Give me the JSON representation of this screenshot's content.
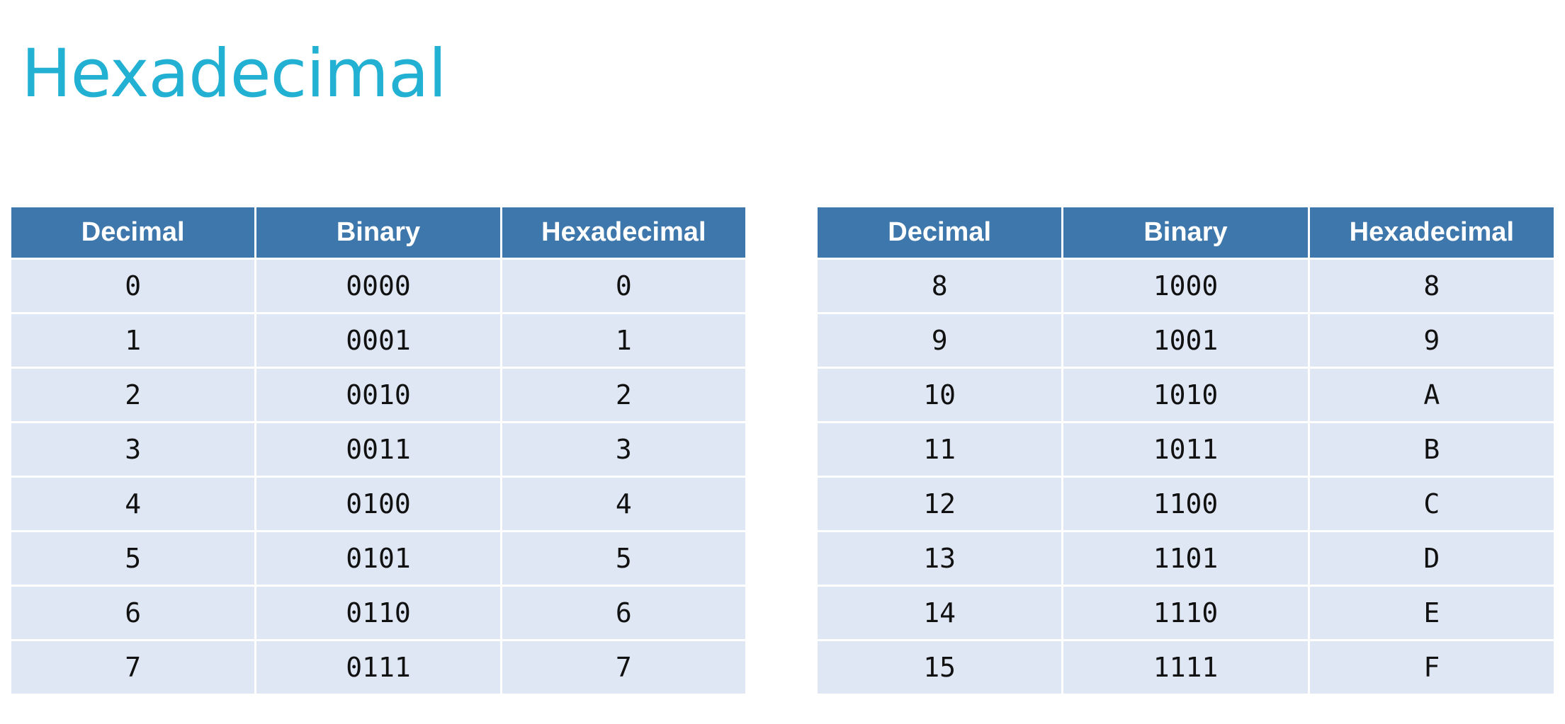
{
  "title": "Hexadecimal",
  "tables": [
    {
      "headers": [
        "Decimal",
        "Binary",
        "Hexadecimal"
      ],
      "rows": [
        [
          "0",
          "0000",
          "0"
        ],
        [
          "1",
          "0001",
          "1"
        ],
        [
          "2",
          "0010",
          "2"
        ],
        [
          "3",
          "0011",
          "3"
        ],
        [
          "4",
          "0100",
          "4"
        ],
        [
          "5",
          "0101",
          "5"
        ],
        [
          "6",
          "0110",
          "6"
        ],
        [
          "7",
          "0111",
          "7"
        ]
      ]
    },
    {
      "headers": [
        "Decimal",
        "Binary",
        "Hexadecimal"
      ],
      "rows": [
        [
          "8",
          "1000",
          "8"
        ],
        [
          "9",
          "1001",
          "9"
        ],
        [
          "10",
          "1010",
          "A"
        ],
        [
          "11",
          "1011",
          "B"
        ],
        [
          "12",
          "1100",
          "C"
        ],
        [
          "13",
          "1101",
          "D"
        ],
        [
          "14",
          "1110",
          "E"
        ],
        [
          "15",
          "1111",
          "F"
        ]
      ]
    }
  ],
  "colors": {
    "title": "#23b1d3",
    "header_background": "#3e77ab",
    "header_text": "#ffffff",
    "cell_background": "#dfe7f4",
    "cell_text": "#111111"
  }
}
